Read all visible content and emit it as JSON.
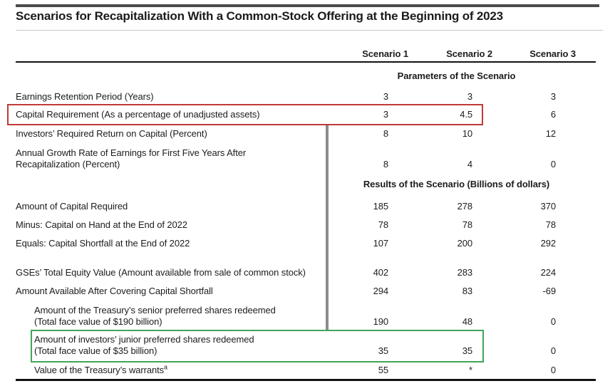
{
  "title": "Scenarios for Recapitalization With a Common-Stock Offering at the Beginning of 2023",
  "columns": [
    "Scenario 1",
    "Scenario 2",
    "Scenario 3"
  ],
  "sections": {
    "parameters": "Parameters of the Scenario",
    "results": "Results of the Scenario (Billions of dollars)"
  },
  "table": {
    "rows": [
      {
        "label": "Earnings Retention Period (Years)",
        "values": [
          3,
          3,
          3
        ]
      },
      {
        "label": "Capital Requirement (As a percentage of unadjusted assets)",
        "values": [
          3,
          4.5,
          6
        ],
        "highlight": "red"
      },
      {
        "label": "Investors’ Required Return on Capital (Percent)",
        "values": [
          8,
          10,
          12
        ]
      },
      {
        "label": "Annual Growth Rate of Earnings for First Five Years After",
        "label2": "Recapitalization (Percent)",
        "values": [
          8,
          4,
          0
        ]
      },
      {
        "label": "Amount of Capital Required",
        "values": [
          185,
          278,
          370
        ]
      },
      {
        "label": "Minus: Capital on Hand at the End of 2022",
        "values": [
          78,
          78,
          78
        ]
      },
      {
        "label": "Equals: Capital Shortfall at the End of 2022",
        "values": [
          107,
          200,
          292
        ]
      },
      {
        "label": "GSEs’ Total Equity Value (Amount available from sale of common stock)",
        "values": [
          402,
          283,
          224
        ]
      },
      {
        "label": "Amount Available After Covering Capital Shortfall",
        "values": [
          294,
          83,
          -69
        ]
      },
      {
        "label": "Amount of the Treasury’s senior preferred shares redeemed",
        "label2": "(Total face value of $190 billion)",
        "values": [
          190,
          48,
          0
        ]
      },
      {
        "label": "Amount of investors’ junior preferred shares redeemed",
        "label2": "(Total face value of $35 billion)",
        "values": [
          35,
          35,
          0
        ],
        "highlight": "green"
      },
      {
        "label": "Value of the Treasury’s warrants",
        "footnote": "a",
        "values": [
          55,
          "*",
          0
        ]
      }
    ]
  },
  "colors": {
    "highlight_red": "#bf3b36",
    "highlight_green": "#3fa65a",
    "divider_gray": "#8c8c8c"
  }
}
